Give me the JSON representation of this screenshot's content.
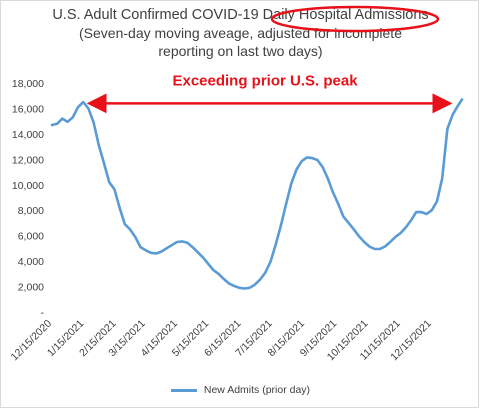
{
  "chart_data": {
    "type": "line",
    "title_lines": [
      "U.S. Adult Confirmed COVID-19 Daily Hospital Admissions",
      "(Seven-day moving aveage, adjusted for incomplete",
      "reporting on last two days)"
    ],
    "xlabel": "",
    "ylabel": "",
    "yticks": [
      "-",
      "2,000",
      "4,000",
      "6,000",
      "8,000",
      "10,000",
      "12,000",
      "14,000",
      "16,000",
      "18,000"
    ],
    "ylim": [
      0,
      18000
    ],
    "xticks": [
      "12/15/2020",
      "1/15/2021",
      "2/15/2021",
      "3/15/2021",
      "4/15/2021",
      "5/15/2021",
      "6/15/2021",
      "7/15/2021",
      "8/15/2021",
      "9/15/2021",
      "10/15/2021",
      "11/15/2021",
      "12/15/2021"
    ],
    "xlim": [
      "2020-12-15",
      "2022-01-13"
    ],
    "series": [
      {
        "name": "New Admits (prior day)",
        "color": "#5b9bd5",
        "x": [
          "2020-12-15",
          "2020-12-20",
          "2020-12-25",
          "2020-12-30",
          "2021-01-04",
          "2021-01-09",
          "2021-01-14",
          "2021-01-19",
          "2021-01-24",
          "2021-01-29",
          "2021-02-03",
          "2021-02-08",
          "2021-02-13",
          "2021-02-18",
          "2021-02-23",
          "2021-02-28",
          "2021-03-05",
          "2021-03-10",
          "2021-03-15",
          "2021-03-20",
          "2021-03-25",
          "2021-03-30",
          "2021-04-04",
          "2021-04-09",
          "2021-04-14",
          "2021-04-19",
          "2021-04-24",
          "2021-04-29",
          "2021-05-04",
          "2021-05-09",
          "2021-05-14",
          "2021-05-19",
          "2021-05-24",
          "2021-05-29",
          "2021-06-03",
          "2021-06-08",
          "2021-06-13",
          "2021-06-18",
          "2021-06-23",
          "2021-06-28",
          "2021-07-03",
          "2021-07-08",
          "2021-07-13",
          "2021-07-18",
          "2021-07-23",
          "2021-07-28",
          "2021-08-02",
          "2021-08-07",
          "2021-08-12",
          "2021-08-17",
          "2021-08-22",
          "2021-08-27",
          "2021-09-01",
          "2021-09-06",
          "2021-09-11",
          "2021-09-16",
          "2021-09-21",
          "2021-09-26",
          "2021-10-01",
          "2021-10-06",
          "2021-10-11",
          "2021-10-16",
          "2021-10-21",
          "2021-10-26",
          "2021-10-31",
          "2021-11-05",
          "2021-11-10",
          "2021-11-15",
          "2021-11-20",
          "2021-11-25",
          "2021-11-30",
          "2021-12-05",
          "2021-12-10",
          "2021-12-15",
          "2021-12-20",
          "2021-12-25",
          "2021-12-30",
          "2022-01-04",
          "2022-01-09",
          "2022-01-13"
        ],
        "values": [
          14700,
          14800,
          15200,
          14950,
          15300,
          16100,
          16500,
          16000,
          14900,
          13100,
          11700,
          10200,
          9650,
          8200,
          6900,
          6500,
          5900,
          5100,
          4850,
          4650,
          4600,
          4750,
          5000,
          5250,
          5500,
          5550,
          5450,
          5100,
          4700,
          4300,
          3800,
          3300,
          3000,
          2600,
          2250,
          2050,
          1900,
          1850,
          1900,
          2150,
          2550,
          3100,
          3950,
          5300,
          6800,
          8500,
          10100,
          11200,
          11850,
          12150,
          12100,
          11950,
          11400,
          10500,
          9400,
          8500,
          7500,
          7000,
          6500,
          5950,
          5500,
          5150,
          4950,
          4950,
          5150,
          5500,
          5900,
          6200,
          6650,
          7200,
          7850,
          7850,
          7700,
          8000,
          8700,
          10500,
          14400,
          15500,
          16200,
          16700
        ]
      }
    ],
    "annotation": {
      "text": "Exceeding prior U.S. peak",
      "arrow_value": 16400,
      "color": "#e8111a"
    },
    "highlight_circle": {
      "target": "Daily Hospital Admissions",
      "color": "#e8111a"
    },
    "legend_position": "bottom",
    "grid": false
  }
}
